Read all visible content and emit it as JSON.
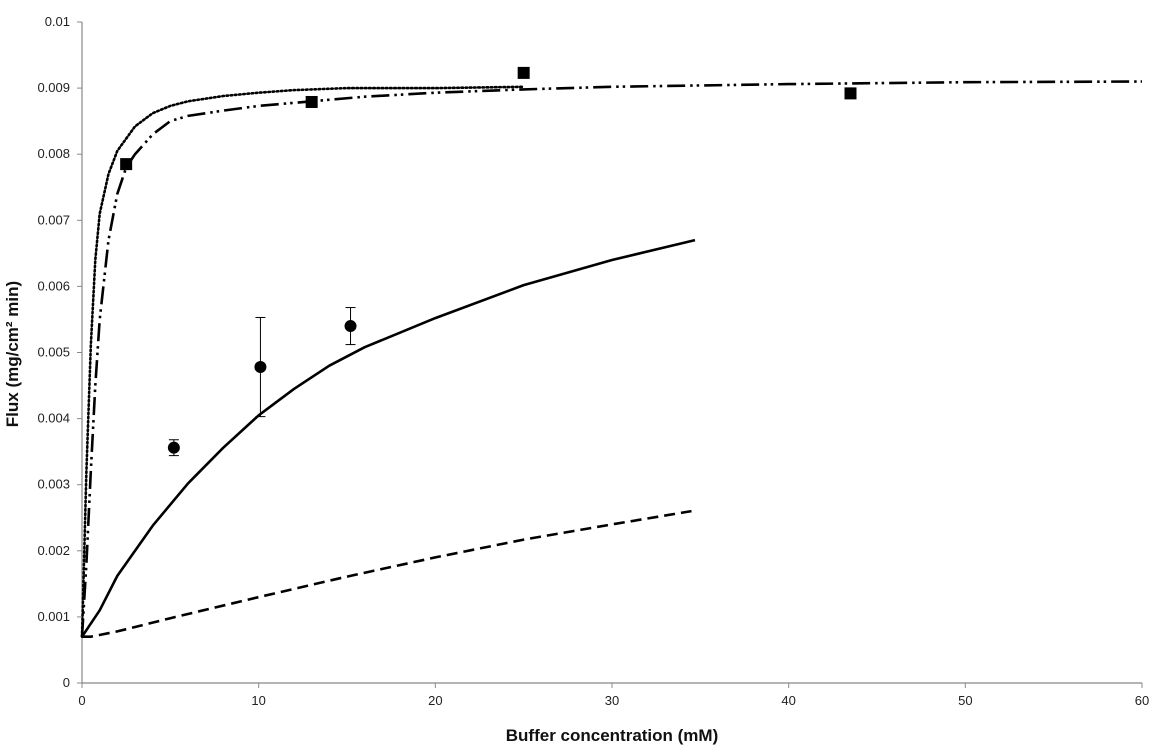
{
  "chart_data": {
    "type": "scatter",
    "title": "",
    "xlabel": "Buffer concentration (mM)",
    "ylabel": "Flux (mg/cm² min)",
    "xlim": [
      0,
      60
    ],
    "ylim": [
      0,
      0.01
    ],
    "x_ticks": [
      "0",
      "10",
      "20",
      "30",
      "40",
      "50",
      "60"
    ],
    "y_ticks": [
      "0",
      "0.001",
      "0.002",
      "0.003",
      "0.004",
      "0.005",
      "0.006",
      "0.007",
      "0.008",
      "0.009",
      "0.01"
    ],
    "grid": false,
    "legend": "none",
    "series": [
      {
        "kind": "points",
        "marker": "square",
        "color": "#000000",
        "x": [
          2.5,
          13,
          25,
          43.5
        ],
        "y": [
          0.00785,
          0.00879,
          0.00923,
          0.00892
        ]
      },
      {
        "kind": "points",
        "marker": "circle",
        "color": "#000000",
        "x": [
          5.2,
          10.1,
          15.2
        ],
        "y": [
          0.00356,
          0.00478,
          0.0054
        ],
        "error": [
          0.00012,
          0.00075,
          0.00028
        ]
      },
      {
        "kind": "line",
        "style": "solid",
        "color": "#000000",
        "x": [
          0,
          1,
          2,
          4,
          6,
          8,
          10,
          12,
          14,
          16,
          20,
          25,
          30,
          34.7
        ],
        "y": [
          0.0007,
          0.0011,
          0.00162,
          0.00238,
          0.00302,
          0.00356,
          0.00405,
          0.00445,
          0.0048,
          0.00508,
          0.00552,
          0.00602,
          0.0064,
          0.0067
        ]
      },
      {
        "kind": "line",
        "style": "dashed",
        "color": "#000000",
        "x": [
          0,
          0.5,
          2,
          5,
          10,
          15,
          20,
          25,
          30,
          34.5
        ],
        "y": [
          0.0007,
          0.0007,
          0.00078,
          0.00098,
          0.0013,
          0.00161,
          0.0019,
          0.00217,
          0.0024,
          0.0026
        ]
      },
      {
        "kind": "line",
        "style": "dotted",
        "color": "#000000",
        "x": [
          0,
          0.25,
          0.5,
          0.75,
          1,
          1.5,
          2,
          3,
          4,
          5,
          6,
          8,
          10,
          12,
          15,
          20,
          25
        ],
        "y": [
          0.0007,
          0.0032,
          0.0051,
          0.0064,
          0.0071,
          0.0077,
          0.00805,
          0.00842,
          0.00862,
          0.00873,
          0.0088,
          0.00888,
          0.00893,
          0.00897,
          0.009,
          0.009,
          0.00902
        ]
      },
      {
        "kind": "line",
        "style": "dash-dot-dot",
        "color": "#000000",
        "x": [
          0,
          0.25,
          0.5,
          0.75,
          1,
          1.5,
          2,
          2.5,
          3,
          4,
          5,
          6,
          8,
          10,
          13,
          16,
          20,
          25,
          30,
          40,
          50,
          60
        ],
        "y": [
          0.0007,
          0.0018,
          0.0032,
          0.0045,
          0.0055,
          0.0067,
          0.0074,
          0.0078,
          0.008,
          0.0083,
          0.0085,
          0.00858,
          0.00866,
          0.00873,
          0.0088,
          0.00887,
          0.00893,
          0.00898,
          0.00902,
          0.00906,
          0.00909,
          0.0091
        ]
      }
    ]
  }
}
